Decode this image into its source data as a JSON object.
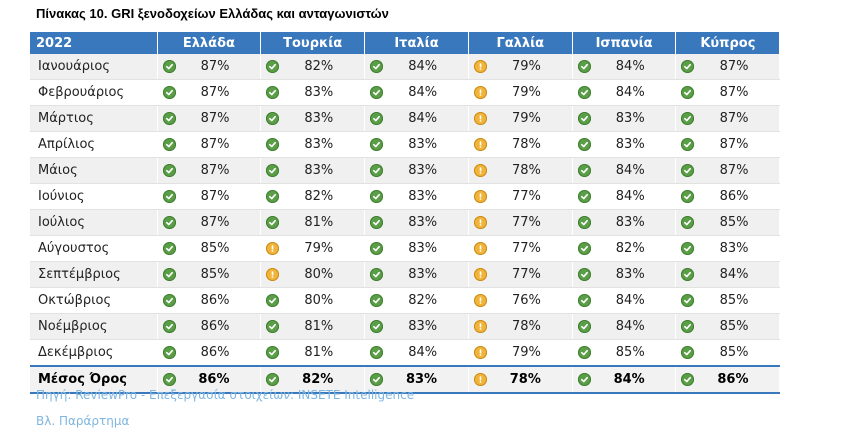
{
  "title": "Πίνακας 10. GRI ξενοδοχείων Ελλάδας και ανταγωνιστών",
  "headers": [
    "2022",
    "Ελλάδα",
    "Τουρκία",
    "Ιταλία",
    "Γαλλία",
    "Ισπανία",
    "Κύπρος"
  ],
  "rows": [
    {
      "month": "Ιανουάριος",
      "values": [
        "87%",
        "82%",
        "84%",
        "79%",
        "84%",
        "87%"
      ],
      "status": [
        "ok",
        "ok",
        "ok",
        "warn",
        "ok",
        "ok"
      ]
    },
    {
      "month": "Φεβρουάριος",
      "values": [
        "87%",
        "83%",
        "84%",
        "79%",
        "84%",
        "87%"
      ],
      "status": [
        "ok",
        "ok",
        "ok",
        "warn",
        "ok",
        "ok"
      ]
    },
    {
      "month": "Μάρτιος",
      "values": [
        "87%",
        "83%",
        "84%",
        "79%",
        "83%",
        "87%"
      ],
      "status": [
        "ok",
        "ok",
        "ok",
        "warn",
        "ok",
        "ok"
      ]
    },
    {
      "month": "Απρίλιος",
      "values": [
        "87%",
        "83%",
        "83%",
        "78%",
        "83%",
        "87%"
      ],
      "status": [
        "ok",
        "ok",
        "ok",
        "warn",
        "ok",
        "ok"
      ]
    },
    {
      "month": "Μάιος",
      "values": [
        "87%",
        "83%",
        "83%",
        "78%",
        "84%",
        "87%"
      ],
      "status": [
        "ok",
        "ok",
        "ok",
        "warn",
        "ok",
        "ok"
      ]
    },
    {
      "month": "Ιούνιος",
      "values": [
        "87%",
        "82%",
        "83%",
        "77%",
        "84%",
        "86%"
      ],
      "status": [
        "ok",
        "ok",
        "ok",
        "warn",
        "ok",
        "ok"
      ]
    },
    {
      "month": "Ιούλιος",
      "values": [
        "87%",
        "81%",
        "83%",
        "77%",
        "83%",
        "85%"
      ],
      "status": [
        "ok",
        "ok",
        "ok",
        "warn",
        "ok",
        "ok"
      ]
    },
    {
      "month": "Αύγουστος",
      "values": [
        "85%",
        "79%",
        "83%",
        "77%",
        "82%",
        "83%"
      ],
      "status": [
        "ok",
        "warn",
        "ok",
        "warn",
        "ok",
        "ok"
      ]
    },
    {
      "month": "Σεπτέμβριος",
      "values": [
        "85%",
        "80%",
        "83%",
        "77%",
        "83%",
        "84%"
      ],
      "status": [
        "ok",
        "warn",
        "ok",
        "warn",
        "ok",
        "ok"
      ]
    },
    {
      "month": "Οκτώβριος",
      "values": [
        "86%",
        "80%",
        "82%",
        "76%",
        "84%",
        "85%"
      ],
      "status": [
        "ok",
        "ok",
        "ok",
        "warn",
        "ok",
        "ok"
      ]
    },
    {
      "month": "Νοέμβριος",
      "values": [
        "86%",
        "81%",
        "83%",
        "78%",
        "84%",
        "85%"
      ],
      "status": [
        "ok",
        "ok",
        "ok",
        "warn",
        "ok",
        "ok"
      ]
    },
    {
      "month": "Δεκέμβριος",
      "values": [
        "86%",
        "81%",
        "84%",
        "79%",
        "85%",
        "85%"
      ],
      "status": [
        "ok",
        "ok",
        "ok",
        "warn",
        "ok",
        "ok"
      ]
    }
  ],
  "average": {
    "label": "Μέσος Όρος",
    "values": [
      "86%",
      "82%",
      "83%",
      "78%",
      "84%",
      "86%"
    ],
    "status": [
      "ok",
      "ok",
      "ok",
      "warn",
      "ok",
      "ok"
    ]
  },
  "source": "Πηγή:  ReviewPro - Επεξεργασία στοιχείων: INSETE Intelligence",
  "note": "Βλ. Παράρτημα",
  "icons": {
    "ok": "check-circle-icon",
    "warn": "exclamation-circle-icon"
  },
  "colors": {
    "header": "#3a78bd",
    "ok": "#5a9e47",
    "warn": "#f0b43a",
    "footer_text": "#7fb6e0"
  }
}
